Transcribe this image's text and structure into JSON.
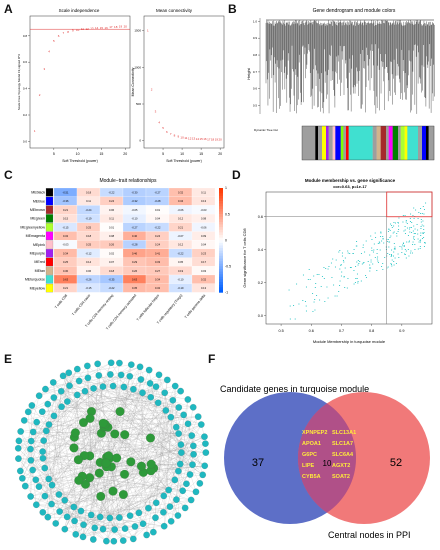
{
  "panel_letters": [
    "A",
    "B",
    "C",
    "D",
    "E",
    "F"
  ],
  "panelA": {
    "left": {
      "title": "Scale independence",
      "xlabel": "Soft Threshold (power)",
      "ylabel": "Scale Free Topology Model Fit,signed R^2",
      "xticks": [
        "5",
        "10",
        "15",
        "20"
      ],
      "yticks": [
        "0.0",
        "0.2",
        "0.4",
        "0.6",
        "0.8"
      ],
      "cutoff": 0.85,
      "points": [
        {
          "x": 1,
          "y": 0.08
        },
        {
          "x": 2,
          "y": 0.35
        },
        {
          "x": 3,
          "y": 0.55
        },
        {
          "x": 4,
          "y": 0.68
        },
        {
          "x": 5,
          "y": 0.76
        },
        {
          "x": 6,
          "y": 0.8
        },
        {
          "x": 7,
          "y": 0.82
        },
        {
          "x": 8,
          "y": 0.83
        },
        {
          "x": 9,
          "y": 0.84
        },
        {
          "x": 10,
          "y": 0.845
        },
        {
          "x": 11,
          "y": 0.85
        },
        {
          "x": 12,
          "y": 0.85
        },
        {
          "x": 13,
          "y": 0.855
        },
        {
          "x": 14,
          "y": 0.86
        },
        {
          "x": 15,
          "y": 0.86
        },
        {
          "x": 16,
          "y": 0.86
        },
        {
          "x": 17,
          "y": 0.865
        },
        {
          "x": 18,
          "y": 0.865
        },
        {
          "x": 19,
          "y": 0.87
        },
        {
          "x": 20,
          "y": 0.87
        }
      ]
    },
    "right": {
      "title": "Mean connectivity",
      "xlabel": "Soft Threshold (power)",
      "ylabel": "Mean Connectivity",
      "xticks": [
        "5",
        "10",
        "15",
        "20"
      ],
      "yticks": [
        "0",
        "500",
        "1000",
        "1500"
      ],
      "points": [
        {
          "x": 1,
          "y": 1500
        },
        {
          "x": 2,
          "y": 700
        },
        {
          "x": 3,
          "y": 400
        },
        {
          "x": 4,
          "y": 250
        },
        {
          "x": 5,
          "y": 170
        },
        {
          "x": 6,
          "y": 120
        },
        {
          "x": 7,
          "y": 90
        },
        {
          "x": 8,
          "y": 70
        },
        {
          "x": 9,
          "y": 55
        },
        {
          "x": 10,
          "y": 45
        },
        {
          "x": 11,
          "y": 38
        },
        {
          "x": 12,
          "y": 32
        },
        {
          "x": 13,
          "y": 28
        },
        {
          "x": 14,
          "y": 25
        },
        {
          "x": 15,
          "y": 22
        },
        {
          "x": 16,
          "y": 20
        },
        {
          "x": 17,
          "y": 18
        },
        {
          "x": 18,
          "y": 17
        },
        {
          "x": 19,
          "y": 16
        },
        {
          "x": 20,
          "y": 15
        }
      ]
    }
  },
  "panelB": {
    "title": "Gene dendrogram and module colors",
    "ylabel": "Height",
    "yticks": [
      "0.5",
      "0.6",
      "0.7",
      "0.8",
      "0.9",
      "1.0"
    ],
    "colorbar_label": "Dynamic Tree Cut",
    "color_blocks": [
      {
        "color": "#9e9e9e",
        "w": 10
      },
      {
        "color": "#000000",
        "w": 2
      },
      {
        "color": "#9e9e9e",
        "w": 3
      },
      {
        "color": "#ffff00",
        "w": 3
      },
      {
        "color": "#a020f0",
        "w": 2
      },
      {
        "color": "#9e9e9e",
        "w": 3
      },
      {
        "color": "#ffc0cb",
        "w": 2
      },
      {
        "color": "#0000ff",
        "w": 4
      },
      {
        "color": "#7fff00",
        "w": 2
      },
      {
        "color": "#9e9e9e",
        "w": 2
      },
      {
        "color": "#ff0000",
        "w": 2
      },
      {
        "color": "#40e0d0",
        "w": 18
      },
      {
        "color": "#9e9e9e",
        "w": 3
      },
      {
        "color": "#d2b48c",
        "w": 3
      },
      {
        "color": "#a52a2a",
        "w": 4
      },
      {
        "color": "#9e9e9e",
        "w": 2
      },
      {
        "color": "#ff00ff",
        "w": 3
      },
      {
        "color": "#008000",
        "w": 4
      },
      {
        "color": "#9e9e9e",
        "w": 2
      },
      {
        "color": "#adff2f",
        "w": 3
      },
      {
        "color": "#ffff00",
        "w": 2
      },
      {
        "color": "#40e0d0",
        "w": 8
      },
      {
        "color": "#9e9e9e",
        "w": 3
      },
      {
        "color": "#0000ff",
        "w": 3
      },
      {
        "color": "#000000",
        "w": 2
      },
      {
        "color": "#9e9e9e",
        "w": 4
      }
    ]
  },
  "panelC": {
    "title": "Module−trait relationships",
    "modules": [
      {
        "name": "MEblack",
        "color": "#000000"
      },
      {
        "name": "MEblue",
        "color": "#0000ff"
      },
      {
        "name": "MEbrown",
        "color": "#a52a2a"
      },
      {
        "name": "MEgreen",
        "color": "#008000"
      },
      {
        "name": "MEgreenyellow",
        "color": "#adff2f"
      },
      {
        "name": "MEmagenta",
        "color": "#ff00ff"
      },
      {
        "name": "MEpink",
        "color": "#ffc0cb"
      },
      {
        "name": "MEpurple",
        "color": "#a020f0"
      },
      {
        "name": "MEred",
        "color": "#ff0000"
      },
      {
        "name": "MEtan",
        "color": "#d2b48c"
      },
      {
        "name": "MEturquoise",
        "color": "#40e0d0"
      },
      {
        "name": "MEyellow",
        "color": "#ffff00"
      }
    ],
    "traits": [
      "T cells CD8",
      "T cells CD4 naive",
      "T cells CD4 memory resting",
      "T cells CD4 memory activated",
      "T cells follicular helper",
      "T cells regulatory (Tregs)",
      "T cells gamma delta"
    ],
    "values": [
      [
        -0.51,
        0.18,
        -0.22,
        -0.3,
        -0.27,
        0.32,
        0.11
      ],
      [
        -0.36,
        0.11,
        0.24,
        -0.32,
        -0.28,
        0.34,
        0.13
      ],
      [
        0.21,
        -0.24,
        0.06,
        -0.05,
        0.01,
        -0.06,
        -0.03
      ],
      [
        0.15,
        -0.19,
        0.11,
        -0.1,
        0.04,
        0.12,
        0.08
      ],
      [
        -0.15,
        0.25,
        0.01,
        -0.27,
        -0.22,
        0.21,
        -0.06
      ],
      [
        0.32,
        0.18,
        0.08,
        0.4,
        0.24,
        -0.07,
        0.09
      ],
      [
        -0.03,
        0.25,
        0.26,
        -0.28,
        0.24,
        0.12,
        0.04
      ],
      [
        0.34,
        -0.12,
        0.02,
        0.46,
        0.41,
        -0.22,
        0.23
      ],
      [
        0.25,
        0.14,
        0.07,
        0.29,
        0.33,
        0.05,
        0.17
      ],
      [
        0.3,
        0.06,
        0.18,
        0.26,
        0.27,
        0.19,
        0.03
      ],
      [
        0.63,
        -0.26,
        -0.35,
        0.63,
        0.34,
        -0.1,
        0.32
      ],
      [
        0.21,
        -0.15,
        -0.22,
        0.35,
        0.32,
        -0.19,
        0.13
      ]
    ],
    "legend_ticks": [
      "1",
      "0.5",
      "0",
      "-0.5",
      "-1"
    ]
  },
  "panelD": {
    "title": "Module membership vs. gene significance",
    "subtitle": "cor=0.63, p=1e-17",
    "xlabel": "Module Membership in turquoise module",
    "ylabel": "Gene significance for T cells CD8",
    "xticks": [
      "0.5",
      "0.6",
      "0.7",
      "0.8",
      "0.9"
    ],
    "yticks": [
      "0.0",
      "0.2",
      "0.4",
      "0.6"
    ],
    "xlim": [
      0.45,
      1.0
    ],
    "ylim": [
      -0.05,
      0.75
    ],
    "vline": 0.85,
    "hline": 0.6
  },
  "panelF": {
    "left_label": "Candidate genes in turquoise module",
    "right_label": "Central nodes in PPI",
    "left_count": "37",
    "overlap_count": "10",
    "right_count": "52",
    "genes_left": [
      "XPNPEP2",
      "APOA1",
      "G6PC",
      "LIPE",
      "CYB5A"
    ],
    "genes_right": [
      "SLC13A1",
      "SLC1A7",
      "SLC6A4",
      "AGXT2",
      "SOAT2"
    ]
  }
}
